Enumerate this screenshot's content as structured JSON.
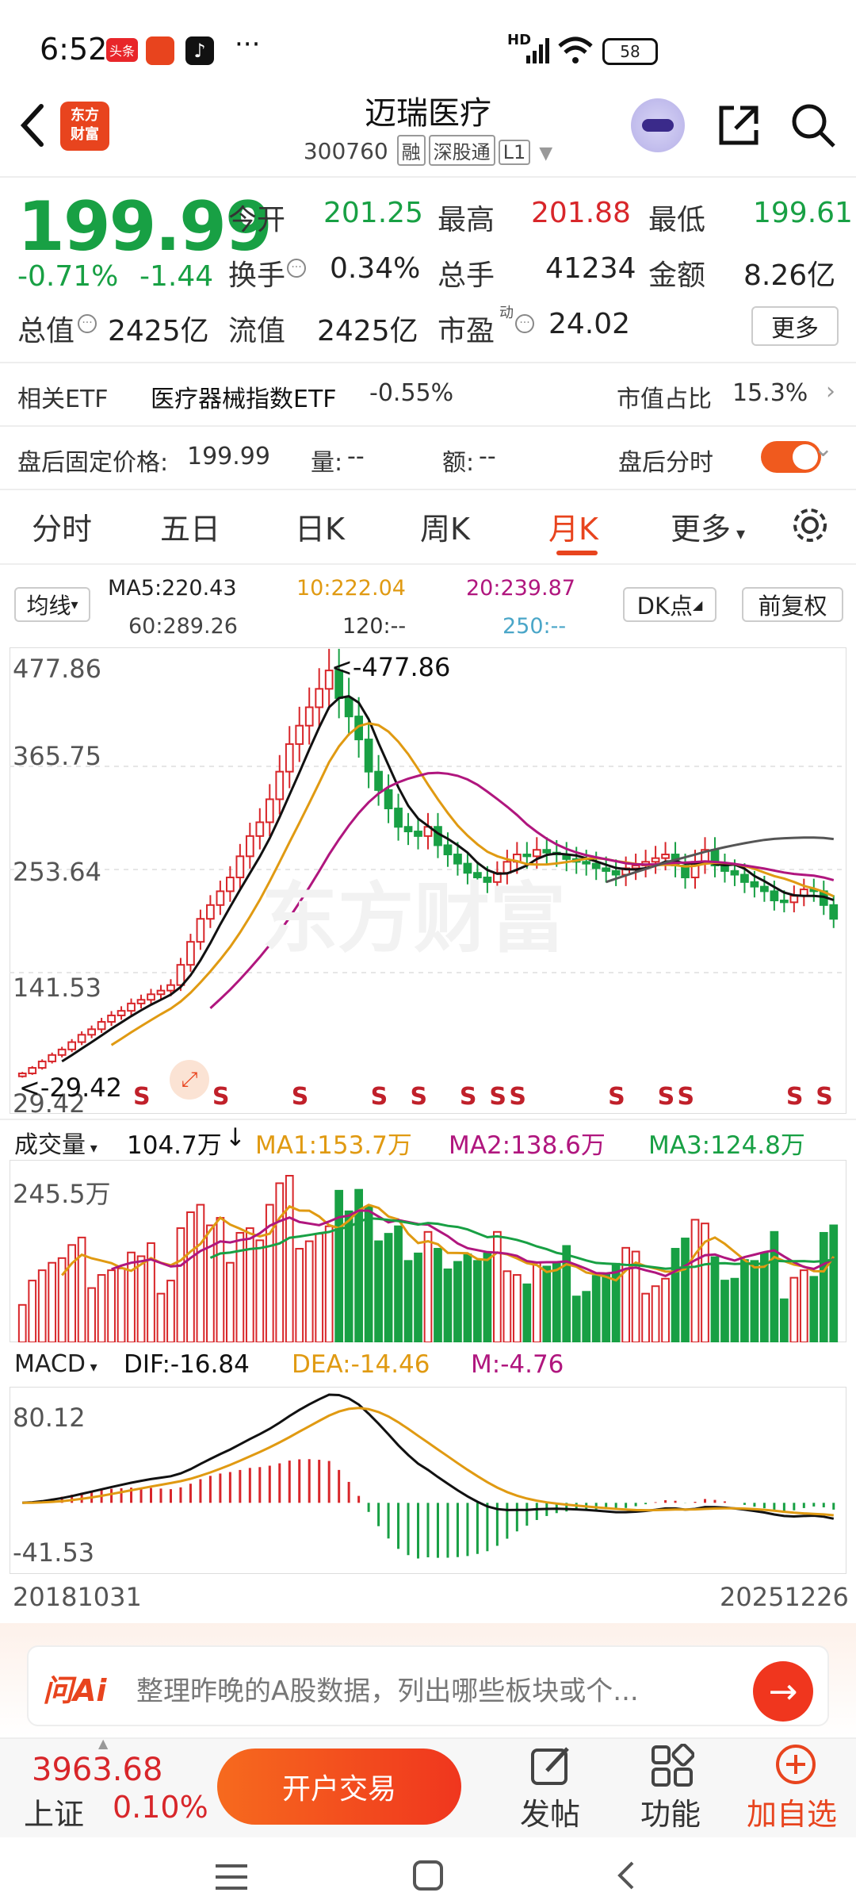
{
  "status_bar": {
    "time": "6:52",
    "badge1": "头条",
    "network": "HD",
    "battery": "58",
    "more": "···"
  },
  "header": {
    "title": "迈瑞医疗",
    "code": "300760",
    "tag_rong": "融",
    "tag_sgt": "深股通",
    "tag_level": "L1",
    "logo_text_line1": "东方",
    "logo_text_line2": "财富"
  },
  "quote": {
    "price": "199.99",
    "change_pct": "-0.71%",
    "change_amt": "-1.44",
    "open_label": "今开",
    "open": "201.25",
    "high_label": "最高",
    "high": "201.88",
    "low_label": "最低",
    "low": "199.61",
    "turnover_label": "换手",
    "turnover": "0.34%",
    "volume_label": "总手",
    "volume": "41234",
    "amount_label": "金额",
    "amount": "8.26亿",
    "mktcap_label": "总值",
    "mktcap": "2425亿",
    "float_label": "流值",
    "float": "2425亿",
    "pe_label": "市盈",
    "pe_sup": "动",
    "pe": "24.02",
    "more": "更多"
  },
  "etf": {
    "label": "相关ETF",
    "name": "医疗器械指数ETF",
    "change": "-0.55%",
    "share_label": "市值占比",
    "share": "15.3%"
  },
  "afterhours": {
    "label": "盘后固定价格:",
    "price": "199.99",
    "vol_label": "量:",
    "vol": "--",
    "amt_label": "额:",
    "amt": "--",
    "toggle_label": "盘后分时"
  },
  "tabs": [
    {
      "label": "分时"
    },
    {
      "label": "五日"
    },
    {
      "label": "日K"
    },
    {
      "label": "周K"
    },
    {
      "label": "月K"
    },
    {
      "label": "更多"
    }
  ],
  "ma_header": {
    "select": "均线",
    "ma5": "MA5:220.43",
    "ma10": "10:222.04",
    "ma20": "20:239.87",
    "ma60": "60:289.26",
    "ma120": "120:--",
    "ma250": "250:--",
    "dk": "DK点",
    "fq": "前复权"
  },
  "colors": {
    "up": "#d8262a",
    "down": "#18a044",
    "ma5": "#111111",
    "ma10": "#e09a12",
    "ma20": "#b0167e",
    "ma60": "#555555",
    "accent": "#e8441e"
  },
  "chart_data": [
    {
      "type": "candlestick",
      "y_ticks": [
        "477.86",
        "365.75",
        "253.64",
        "141.53",
        "29.42"
      ],
      "ylim": [
        29.42,
        477.86
      ],
      "annotations": [
        "<-477.86",
        "<-29.42"
      ],
      "signal_label": "S",
      "x_start": "20181031",
      "x_end": "20251226",
      "closes": [
        32,
        38,
        45,
        52,
        58,
        66,
        74,
        80,
        88,
        95,
        100,
        108,
        112,
        118,
        122,
        128,
        150,
        175,
        200,
        215,
        230,
        245,
        268,
        290,
        305,
        330,
        360,
        390,
        410,
        430,
        450,
        470,
        440,
        420,
        395,
        360,
        340,
        320,
        300,
        295,
        290,
        300,
        280,
        270,
        260,
        250,
        245,
        240,
        250,
        262,
        270,
        268,
        275,
        272,
        270,
        265,
        262,
        260,
        255,
        252,
        248,
        255,
        258,
        262,
        266,
        270,
        258,
        245,
        262,
        275,
        258,
        252,
        248,
        240,
        235,
        230,
        220,
        218,
        225,
        232,
        230,
        215,
        200
      ],
      "series": [
        {
          "name": "MA5",
          "color": "ma5"
        },
        {
          "name": "10",
          "color": "ma10"
        },
        {
          "name": "20",
          "color": "ma20"
        },
        {
          "name": "60",
          "color": "ma60"
        }
      ]
    },
    {
      "type": "bar",
      "title": "成交量",
      "value_label": "104.7万",
      "ma1": "MA1:153.7万",
      "ma2": "MA2:138.6万",
      "ma3": "MA3:124.8万",
      "y_tick": "245.5万"
    },
    {
      "type": "bar",
      "title": "MACD",
      "dif": "DIF:-16.84",
      "dea": "DEA:-14.46",
      "m": "M:-4.76",
      "y_ticks": [
        "80.12",
        "-41.53"
      ]
    }
  ],
  "ai_bar": {
    "logo": "问Ai",
    "placeholder": "整理昨晚的A股数据，列出哪些板块或个..."
  },
  "bottom_bar": {
    "index_value": "3963.68",
    "index_name": "上证",
    "index_change": "0.10%",
    "trade": "开户交易",
    "post": "发帖",
    "func": "功能",
    "watch": "加自选"
  }
}
